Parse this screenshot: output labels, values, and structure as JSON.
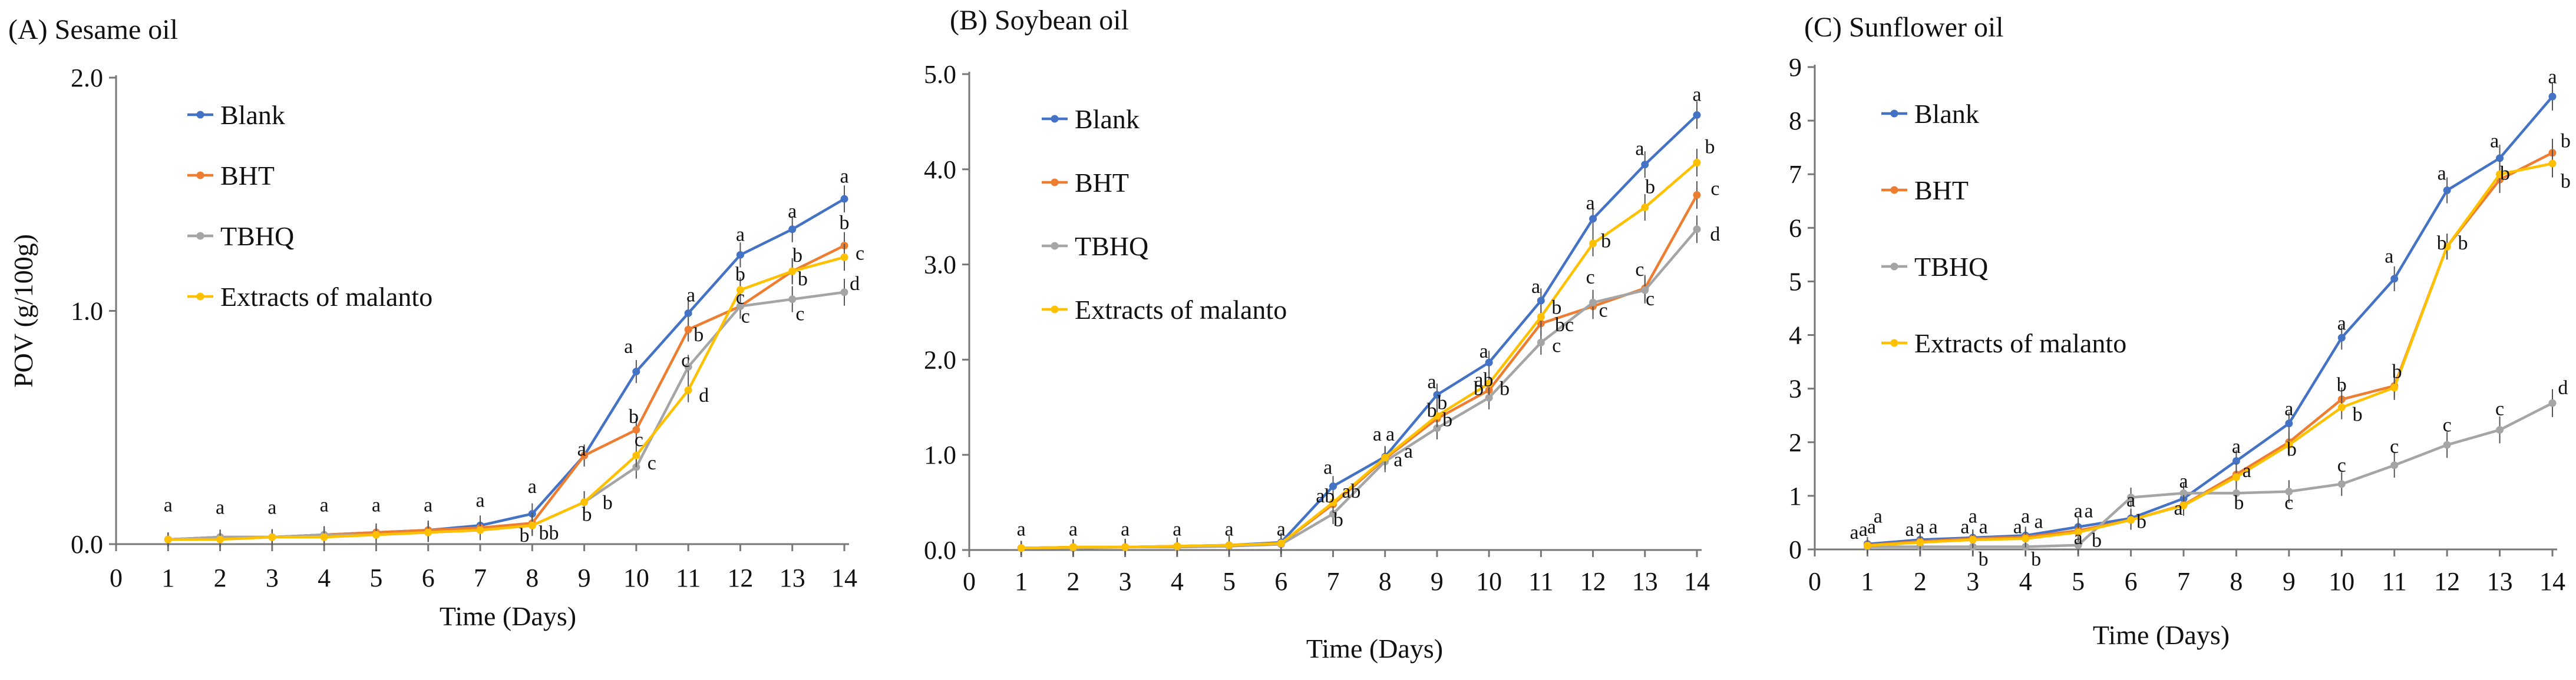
{
  "figure": {
    "colors": {
      "Blank": "#4472C4",
      "BHT": "#ED7D31",
      "TBHQ": "#A5A5A5",
      "Extracts of malanto": "#FFC000"
    }
  },
  "chart_data": [
    {
      "type": "line",
      "title": "(A) Sesame oil",
      "xlabel": "Time (Days)",
      "ylabel": "POV (g/100g)",
      "xlim": [
        0,
        14
      ],
      "ylim": [
        0,
        2
      ],
      "x_ticks": [
        "0",
        "1",
        "2",
        "3",
        "4",
        "5",
        "6",
        "7",
        "8",
        "9",
        "10",
        "11",
        "12",
        "13",
        "14"
      ],
      "y_ticks": [
        {
          "value": 0,
          "label": "0.0"
        },
        {
          "value": 1,
          "label": "1.0"
        },
        {
          "value": 2,
          "label": "2.0"
        }
      ],
      "x": [
        1,
        2,
        3,
        4,
        5,
        6,
        7,
        8,
        9,
        10,
        11,
        12,
        13,
        14
      ],
      "legend_position": "upper-left",
      "series": [
        {
          "name": "Blank",
          "color": "#4472C4",
          "values": [
            0.02,
            0.03,
            0.03,
            0.04,
            0.05,
            0.06,
            0.08,
            0.13,
            0.38,
            0.74,
            0.99,
            1.24,
            1.35,
            1.48
          ]
        },
        {
          "name": "BHT",
          "color": "#ED7D31",
          "values": [
            0.02,
            0.03,
            0.03,
            0.04,
            0.05,
            0.06,
            0.07,
            0.09,
            0.38,
            0.49,
            0.92,
            1.02,
            1.17,
            1.28
          ]
        },
        {
          "name": "TBHQ",
          "color": "#A5A5A5",
          "values": [
            0.02,
            0.03,
            0.03,
            0.04,
            0.04,
            0.05,
            0.06,
            0.08,
            0.18,
            0.33,
            0.76,
            1.02,
            1.05,
            1.08
          ]
        },
        {
          "name": "Extracts of malanto",
          "color": "#FFC000",
          "values": [
            0.02,
            0.02,
            0.03,
            0.03,
            0.04,
            0.05,
            0.06,
            0.08,
            0.18,
            0.38,
            0.66,
            1.09,
            1.17,
            1.23
          ]
        }
      ],
      "annotations": [
        {
          "x": 1,
          "y": 0.14,
          "text": "a"
        },
        {
          "x": 2,
          "y": 0.13,
          "text": "a"
        },
        {
          "x": 3,
          "y": 0.13,
          "text": "a"
        },
        {
          "x": 4,
          "y": 0.14,
          "text": "a"
        },
        {
          "x": 5,
          "y": 0.14,
          "text": "a"
        },
        {
          "x": 6,
          "y": 0.14,
          "text": "a"
        },
        {
          "x": 7,
          "y": 0.16,
          "text": "a"
        },
        {
          "x": 8,
          "y": 0.22,
          "text": "a"
        },
        {
          "x": 7.85,
          "y": 0.01,
          "text": "b"
        },
        {
          "x": 8.32,
          "y": 0.02,
          "text": "bb"
        },
        {
          "x": 8.95,
          "y": 0.38,
          "text": "a"
        },
        {
          "x": 9.05,
          "y": 0.1,
          "text": "b"
        },
        {
          "x": 9.45,
          "y": 0.15,
          "text": "b"
        },
        {
          "x": 9.85,
          "y": 0.82,
          "text": "a"
        },
        {
          "x": 9.95,
          "y": 0.52,
          "text": "b"
        },
        {
          "x": 10.05,
          "y": 0.42,
          "text": "c"
        },
        {
          "x": 10.3,
          "y": 0.32,
          "text": "c"
        },
        {
          "x": 11.05,
          "y": 1.04,
          "text": "a"
        },
        {
          "x": 10.95,
          "y": 0.76,
          "text": "c"
        },
        {
          "x": 11.2,
          "y": 0.87,
          "text": "b"
        },
        {
          "x": 11.3,
          "y": 0.61,
          "text": "d"
        },
        {
          "x": 12,
          "y": 1.3,
          "text": "a"
        },
        {
          "x": 12,
          "y": 1.13,
          "text": "b"
        },
        {
          "x": 12,
          "y": 1.03,
          "text": "c"
        },
        {
          "x": 12.1,
          "y": 0.95,
          "text": "c"
        },
        {
          "x": 13,
          "y": 1.4,
          "text": "a"
        },
        {
          "x": 13.1,
          "y": 1.21,
          "text": "b"
        },
        {
          "x": 13.2,
          "y": 1.11,
          "text": "b"
        },
        {
          "x": 13.15,
          "y": 0.96,
          "text": "c"
        },
        {
          "x": 14,
          "y": 1.55,
          "text": "a"
        },
        {
          "x": 14,
          "y": 1.35,
          "text": "b"
        },
        {
          "x": 14.3,
          "y": 1.22,
          "text": "c"
        },
        {
          "x": 14.2,
          "y": 1.09,
          "text": "d"
        }
      ]
    },
    {
      "type": "line",
      "title": "(B) Soybean oil",
      "xlabel": "Time (Days)",
      "ylabel": "",
      "xlim": [
        0,
        14
      ],
      "ylim": [
        0,
        5
      ],
      "x_ticks": [
        "0",
        "1",
        "2",
        "3",
        "4",
        "5",
        "6",
        "7",
        "8",
        "9",
        "10",
        "11",
        "12",
        "13",
        "14"
      ],
      "y_ticks": [
        {
          "value": 0,
          "label": "0.0"
        },
        {
          "value": 1,
          "label": "1.0"
        },
        {
          "value": 2,
          "label": "2.0"
        },
        {
          "value": 3,
          "label": "3.0"
        },
        {
          "value": 4,
          "label": "4.0"
        },
        {
          "value": 5,
          "label": "5.0"
        }
      ],
      "x": [
        1,
        2,
        3,
        4,
        5,
        6,
        7,
        8,
        9,
        10,
        11,
        12,
        13,
        14
      ],
      "legend_position": "upper-left",
      "series": [
        {
          "name": "Blank",
          "color": "#4472C4",
          "values": [
            0.02,
            0.03,
            0.03,
            0.04,
            0.05,
            0.08,
            0.67,
            0.98,
            1.63,
            1.97,
            2.62,
            3.48,
            4.05,
            4.57
          ]
        },
        {
          "name": "BHT",
          "color": "#ED7D31",
          "values": [
            0.02,
            0.03,
            0.03,
            0.04,
            0.05,
            0.07,
            0.48,
            0.96,
            1.38,
            1.68,
            2.38,
            2.56,
            2.75,
            3.73
          ]
        },
        {
          "name": "TBHQ",
          "color": "#A5A5A5",
          "values": [
            0.02,
            0.02,
            0.03,
            0.03,
            0.04,
            0.06,
            0.38,
            0.93,
            1.28,
            1.6,
            2.18,
            2.6,
            2.73,
            3.37
          ]
        },
        {
          "name": "Extracts of malanto",
          "color": "#FFC000",
          "values": [
            0.02,
            0.03,
            0.03,
            0.04,
            0.05,
            0.07,
            0.5,
            0.97,
            1.41,
            1.75,
            2.45,
            3.22,
            3.6,
            4.07
          ]
        }
      ],
      "annotations": [
        {
          "x": 1,
          "y": 0.15,
          "text": "a"
        },
        {
          "x": 2,
          "y": 0.15,
          "text": "a"
        },
        {
          "x": 3,
          "y": 0.15,
          "text": "a"
        },
        {
          "x": 4,
          "y": 0.15,
          "text": "a"
        },
        {
          "x": 5,
          "y": 0.15,
          "text": "a"
        },
        {
          "x": 6,
          "y": 0.15,
          "text": "a"
        },
        {
          "x": 6.85,
          "y": 0.5,
          "text": "ab"
        },
        {
          "x": 6.9,
          "y": 0.8,
          "text": "a"
        },
        {
          "x": 7.35,
          "y": 0.55,
          "text": "ab"
        },
        {
          "x": 7.1,
          "y": 0.25,
          "text": "b"
        },
        {
          "x": 7.85,
          "y": 1.15,
          "text": "a"
        },
        {
          "x": 8.1,
          "y": 1.15,
          "text": "a"
        },
        {
          "x": 8.25,
          "y": 0.88,
          "text": "a"
        },
        {
          "x": 8.45,
          "y": 0.97,
          "text": "a"
        },
        {
          "x": 8.9,
          "y": 1.7,
          "text": "a"
        },
        {
          "x": 9.1,
          "y": 1.48,
          "text": "b"
        },
        {
          "x": 8.9,
          "y": 1.4,
          "text": "b"
        },
        {
          "x": 9.2,
          "y": 1.3,
          "text": "b"
        },
        {
          "x": 9.9,
          "y": 2.02,
          "text": "a"
        },
        {
          "x": 9.9,
          "y": 1.72,
          "text": "ab"
        },
        {
          "x": 9.8,
          "y": 1.63,
          "text": "b"
        },
        {
          "x": 10.3,
          "y": 1.63,
          "text": "b"
        },
        {
          "x": 10.9,
          "y": 2.7,
          "text": "a"
        },
        {
          "x": 11.3,
          "y": 2.48,
          "text": "b"
        },
        {
          "x": 11.45,
          "y": 2.3,
          "text": "bc"
        },
        {
          "x": 11.3,
          "y": 2.08,
          "text": "c"
        },
        {
          "x": 11.95,
          "y": 2.8,
          "text": "c"
        },
        {
          "x": 12.25,
          "y": 3.18,
          "text": "b"
        },
        {
          "x": 11.95,
          "y": 3.58,
          "text": "a"
        },
        {
          "x": 12.2,
          "y": 2.45,
          "text": "c"
        },
        {
          "x": 12.9,
          "y": 4.15,
          "text": "a"
        },
        {
          "x": 13.1,
          "y": 3.75,
          "text": "b"
        },
        {
          "x": 12.9,
          "y": 2.88,
          "text": "c"
        },
        {
          "x": 13.1,
          "y": 2.57,
          "text": "c"
        },
        {
          "x": 14,
          "y": 4.72,
          "text": "a"
        },
        {
          "x": 14.25,
          "y": 4.17,
          "text": "b"
        },
        {
          "x": 14.35,
          "y": 3.73,
          "text": "c"
        },
        {
          "x": 14.35,
          "y": 3.25,
          "text": "d"
        }
      ]
    },
    {
      "type": "line",
      "title": "(C) Sunflower oil",
      "xlabel": "Time (Days)",
      "ylabel": "",
      "xlim": [
        0,
        14
      ],
      "ylim": [
        0,
        9
      ],
      "x_ticks": [
        "0",
        "1",
        "2",
        "3",
        "4",
        "5",
        "6",
        "7",
        "8",
        "9",
        "10",
        "11",
        "12",
        "13",
        "14"
      ],
      "y_ticks": [
        {
          "value": 0,
          "label": "0"
        },
        {
          "value": 1,
          "label": "1"
        },
        {
          "value": 2,
          "label": "2"
        },
        {
          "value": 3,
          "label": "3"
        },
        {
          "value": 4,
          "label": "4"
        },
        {
          "value": 5,
          "label": "5"
        },
        {
          "value": 6,
          "label": "6"
        },
        {
          "value": 7,
          "label": "7"
        },
        {
          "value": 8,
          "label": "8"
        },
        {
          "value": 9,
          "label": "9"
        }
      ],
      "x": [
        1,
        2,
        3,
        4,
        5,
        6,
        7,
        8,
        9,
        10,
        11,
        12,
        13,
        14
      ],
      "legend_position": "upper-left",
      "series": [
        {
          "name": "Blank",
          "color": "#4472C4",
          "values": [
            0.1,
            0.18,
            0.22,
            0.26,
            0.42,
            0.58,
            0.95,
            1.65,
            2.35,
            3.95,
            5.05,
            6.7,
            7.3,
            8.45
          ]
        },
        {
          "name": "BHT",
          "color": "#ED7D31",
          "values": [
            0.08,
            0.15,
            0.2,
            0.23,
            0.35,
            0.55,
            0.83,
            1.4,
            2.0,
            2.8,
            3.05,
            5.65,
            6.9,
            7.4
          ]
        },
        {
          "name": "TBHQ",
          "color": "#A5A5A5",
          "values": [
            0.05,
            0.05,
            0.05,
            0.05,
            0.08,
            0.97,
            1.05,
            1.05,
            1.08,
            1.22,
            1.57,
            1.95,
            2.23,
            2.73
          ]
        },
        {
          "name": "Extracts of malanto",
          "color": "#FFC000",
          "values": [
            0.07,
            0.13,
            0.18,
            0.2,
            0.32,
            0.55,
            0.82,
            1.35,
            1.95,
            2.65,
            3.02,
            5.65,
            7.0,
            7.2
          ]
        }
      ],
      "annotations": [
        {
          "x": 0.75,
          "y": 0.2,
          "text": "a"
        },
        {
          "x": 0.92,
          "y": 0.25,
          "text": "a"
        },
        {
          "x": 1.08,
          "y": 0.3,
          "text": "a"
        },
        {
          "x": 1.2,
          "y": 0.5,
          "text": "a"
        },
        {
          "x": 1.8,
          "y": 0.25,
          "text": "a"
        },
        {
          "x": 2.0,
          "y": 0.3,
          "text": "a"
        },
        {
          "x": 2.25,
          "y": 0.3,
          "text": "a"
        },
        {
          "x": 2.85,
          "y": 0.3,
          "text": "a"
        },
        {
          "x": 3.0,
          "y": 0.5,
          "text": "a"
        },
        {
          "x": 3.2,
          "y": 0.3,
          "text": "a"
        },
        {
          "x": 3.2,
          "y": -0.3,
          "text": "b"
        },
        {
          "x": 3.85,
          "y": 0.3,
          "text": "a"
        },
        {
          "x": 4.0,
          "y": 0.5,
          "text": "a"
        },
        {
          "x": 4.25,
          "y": 0.4,
          "text": "a"
        },
        {
          "x": 4.2,
          "y": -0.3,
          "text": "b"
        },
        {
          "x": 5.0,
          "y": 0.6,
          "text": "a"
        },
        {
          "x": 5.2,
          "y": 0.6,
          "text": "a"
        },
        {
          "x": 5.0,
          "y": 0.1,
          "text": "a"
        },
        {
          "x": 5.35,
          "y": 0.05,
          "text": "b"
        },
        {
          "x": 6.0,
          "y": 0.8,
          "text": "a"
        },
        {
          "x": 6.2,
          "y": 0.4,
          "text": "b"
        },
        {
          "x": 7.0,
          "y": 1.15,
          "text": "a"
        },
        {
          "x": 6.9,
          "y": 0.65,
          "text": "a"
        },
        {
          "x": 8.0,
          "y": 1.8,
          "text": "a"
        },
        {
          "x": 8.2,
          "y": 1.35,
          "text": "a"
        },
        {
          "x": 8.05,
          "y": 0.75,
          "text": "b"
        },
        {
          "x": 9.0,
          "y": 2.5,
          "text": "a"
        },
        {
          "x": 9.05,
          "y": 1.75,
          "text": "b"
        },
        {
          "x": 9.0,
          "y": 0.75,
          "text": "c"
        },
        {
          "x": 10.0,
          "y": 4.1,
          "text": "a"
        },
        {
          "x": 10.0,
          "y": 2.95,
          "text": "b"
        },
        {
          "x": 10.3,
          "y": 2.4,
          "text": "b"
        },
        {
          "x": 10.0,
          "y": 1.45,
          "text": "c"
        },
        {
          "x": 10.9,
          "y": 5.35,
          "text": "a"
        },
        {
          "x": 11.05,
          "y": 3.2,
          "text": "b"
        },
        {
          "x": 11.0,
          "y": 1.8,
          "text": "c"
        },
        {
          "x": 11.9,
          "y": 6.9,
          "text": "a"
        },
        {
          "x": 11.9,
          "y": 5.6,
          "text": "b"
        },
        {
          "x": 12.3,
          "y": 5.6,
          "text": "b"
        },
        {
          "x": 12.0,
          "y": 2.2,
          "text": "c"
        },
        {
          "x": 12.9,
          "y": 7.5,
          "text": "a"
        },
        {
          "x": 13.1,
          "y": 6.9,
          "text": "b"
        },
        {
          "x": 13.0,
          "y": 2.5,
          "text": "c"
        },
        {
          "x": 14.0,
          "y": 8.7,
          "text": "a"
        },
        {
          "x": 14.25,
          "y": 7.5,
          "text": "b"
        },
        {
          "x": 14.25,
          "y": 6.75,
          "text": "b"
        },
        {
          "x": 14.2,
          "y": 2.9,
          "text": "d"
        }
      ]
    }
  ]
}
